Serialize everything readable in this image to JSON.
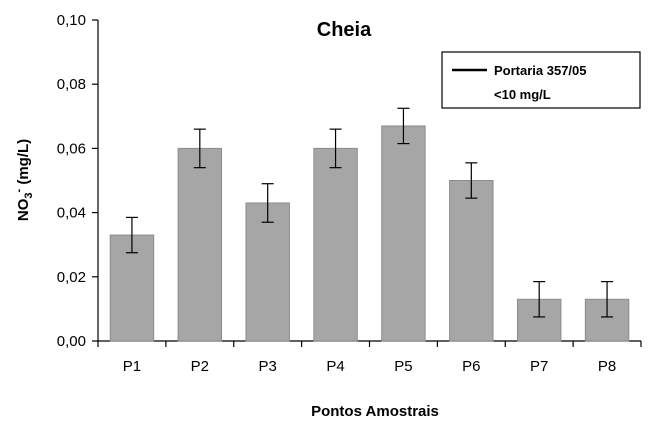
{
  "chart_data": {
    "type": "bar",
    "title": "Cheia",
    "xlabel": "Pontos Amostrais",
    "ylabel_main": "NO",
    "ylabel_sub": "3",
    "ylabel_sup": "-",
    "ylabel_rest": " (mg/L)",
    "categories": [
      "P1",
      "P2",
      "P3",
      "P4",
      "P5",
      "P6",
      "P7",
      "P8"
    ],
    "values": [
      0.033,
      0.06,
      0.043,
      0.06,
      0.067,
      0.05,
      0.013,
      0.013
    ],
    "errors": [
      0.0055,
      0.006,
      0.006,
      0.006,
      0.0055,
      0.0055,
      0.0055,
      0.0055
    ],
    "ylim": [
      0,
      0.1
    ],
    "yticks": [
      0,
      0.02,
      0.04,
      0.06,
      0.08,
      0.1
    ],
    "ytick_labels": [
      "0,00",
      "0,02",
      "0,04",
      "0,06",
      "0,08",
      "0,10"
    ],
    "grid": false,
    "legend_position": "top-right",
    "legend": {
      "line1": "Portaria 357/05",
      "line2": "<10 mg/L"
    },
    "colors": {
      "bar_fill": "#a6a6a6",
      "bar_stroke": "#8c8c8c",
      "axis": "#000000"
    }
  }
}
